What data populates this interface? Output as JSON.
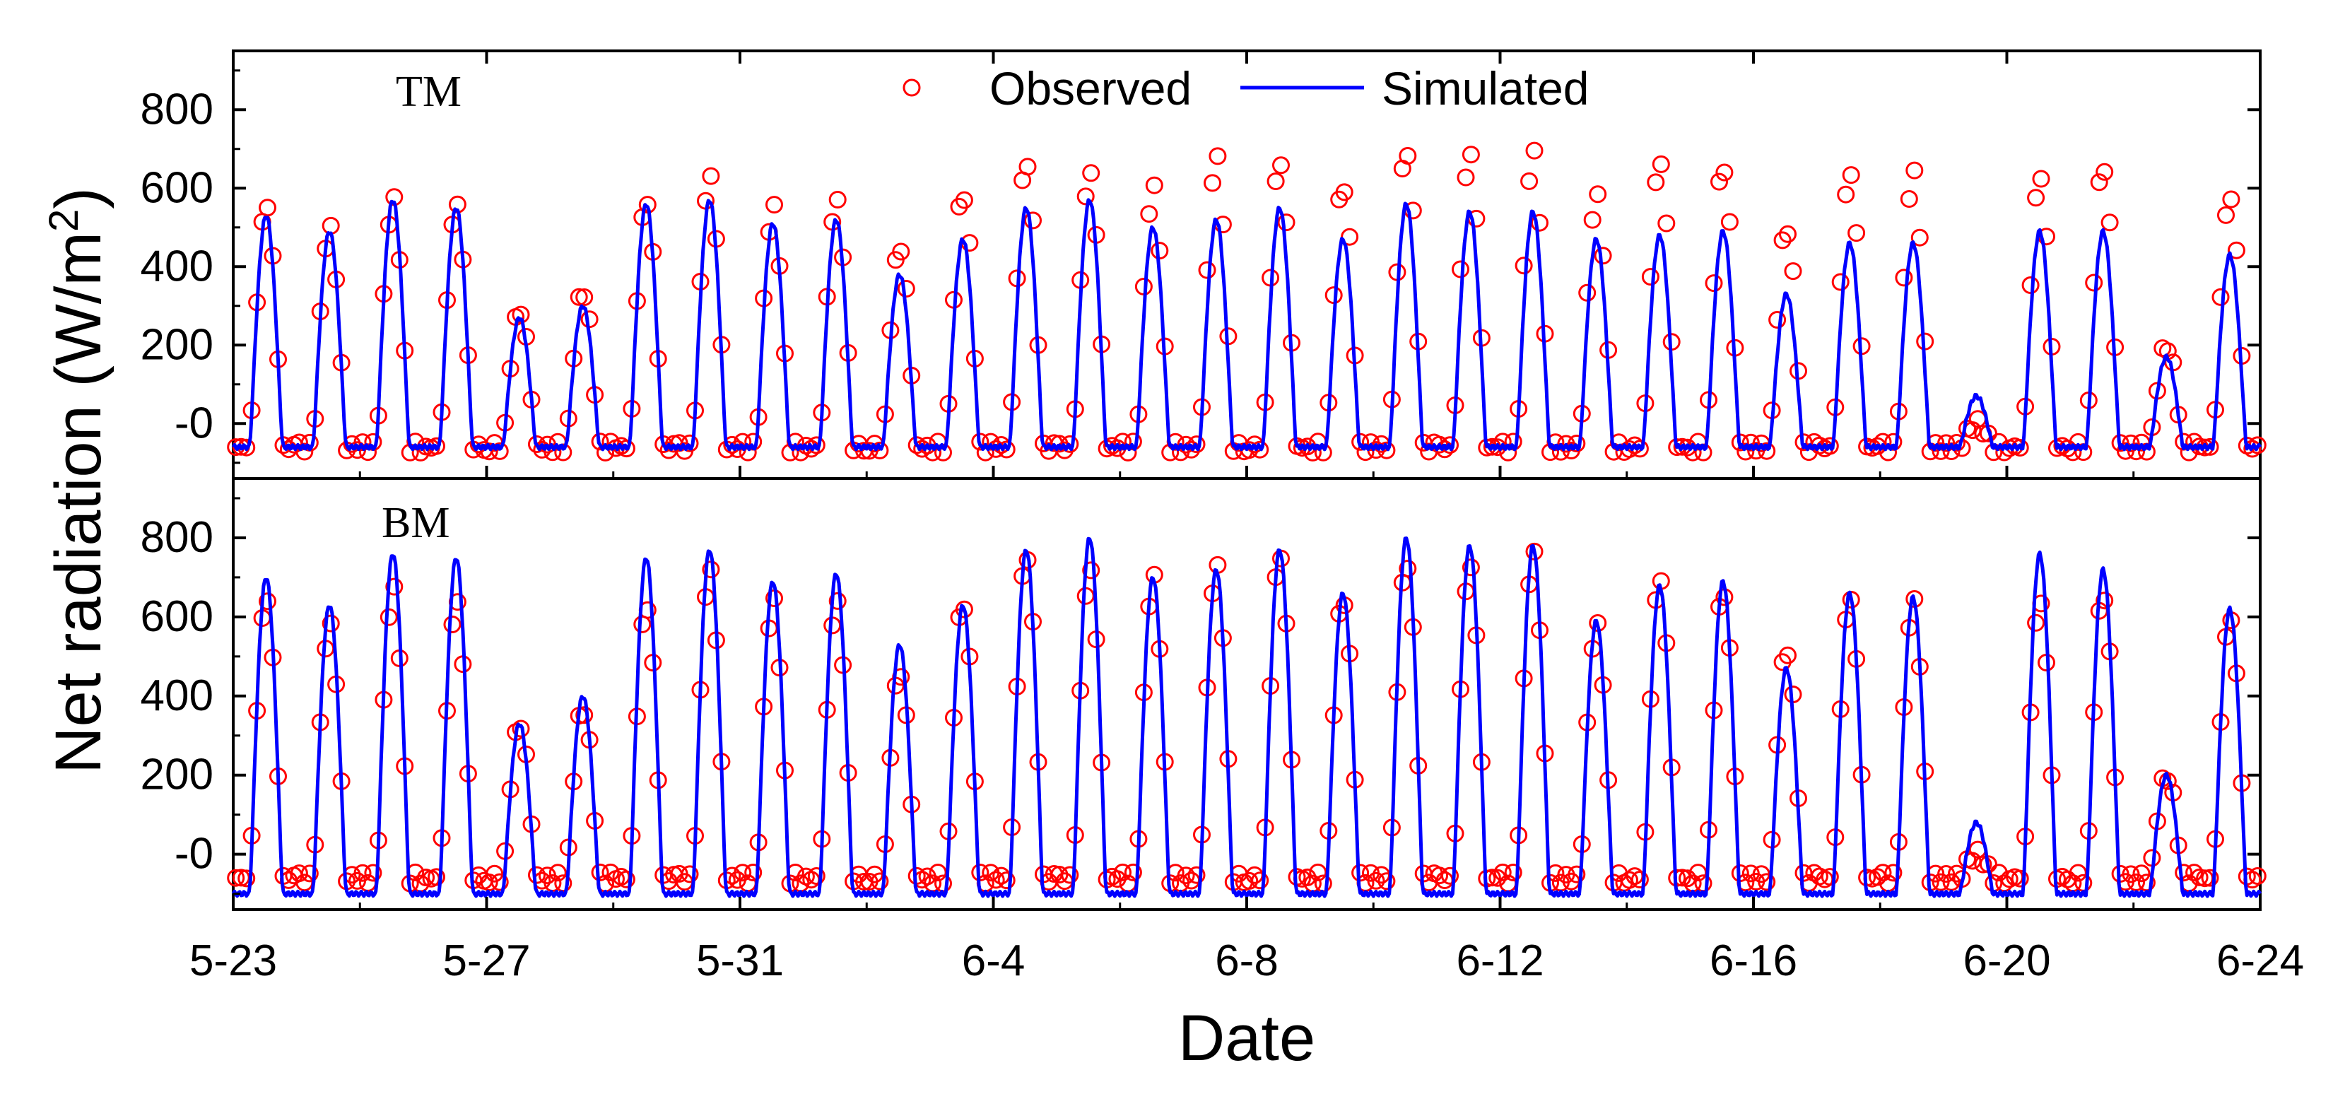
{
  "chart_data": {
    "type": "line",
    "ylabel": "Net radiation (W/m²)",
    "ylabel_main": "Net radiation (W/m",
    "ylabel_sup": "2",
    "ylabel_close": ")",
    "xlabel": "Date",
    "x_tick_labels": [
      "5-23",
      "5-27",
      "5-31",
      "6-4",
      "6-8",
      "6-12",
      "6-16",
      "6-20",
      "6-24"
    ],
    "x_range_days": [
      0,
      32
    ],
    "y_tick_labels": [
      "-0",
      "200",
      "400",
      "600",
      "800"
    ],
    "ylim": [
      -140,
      950
    ],
    "legend": {
      "position": "top-center",
      "observed_label": "Observed",
      "simulated_label": "Simulated"
    },
    "colors": {
      "observed": "#ff0000",
      "simulated": "#0000ff",
      "axis": "#000000"
    },
    "panels": [
      {
        "name": "TM",
        "label": "TM",
        "night_obs": -60,
        "night_sim": -60,
        "observed_daily_peaks": [
          560,
          500,
          570,
          560,
          290,
          340,
          570,
          630,
          550,
          570,
          450,
          590,
          670,
          640,
          600,
          680,
          670,
          610,
          700,
          690,
          690,
          580,
          670,
          660,
          500,
          640,
          640,
          0,
          630,
          660,
          200,
          580
        ],
        "simulated_daily_peaks": [
          530,
          490,
          570,
          550,
          270,
          300,
          560,
          570,
          510,
          520,
          380,
          470,
          550,
          570,
          500,
          520,
          550,
          470,
          560,
          540,
          540,
          470,
          480,
          490,
          330,
          460,
          460,
          70,
          490,
          490,
          170,
          430
        ]
      },
      {
        "name": "BM",
        "label": "BM",
        "night_obs": -60,
        "night_sim": -100,
        "observed_daily_peaks": [
          650,
          580,
          670,
          640,
          330,
          370,
          630,
          720,
          640,
          640,
          460,
          640,
          760,
          720,
          700,
          730,
          760,
          650,
          740,
          730,
          760,
          580,
          700,
          670,
          520,
          650,
          640,
          0,
          640,
          660,
          200,
          600
        ],
        "simulated_daily_peaks": [
          700,
          630,
          760,
          750,
          330,
          400,
          750,
          770,
          690,
          710,
          530,
          630,
          770,
          800,
          700,
          720,
          770,
          660,
          800,
          780,
          780,
          590,
          680,
          690,
          470,
          660,
          650,
          80,
          760,
          720,
          200,
          620
        ]
      }
    ]
  }
}
